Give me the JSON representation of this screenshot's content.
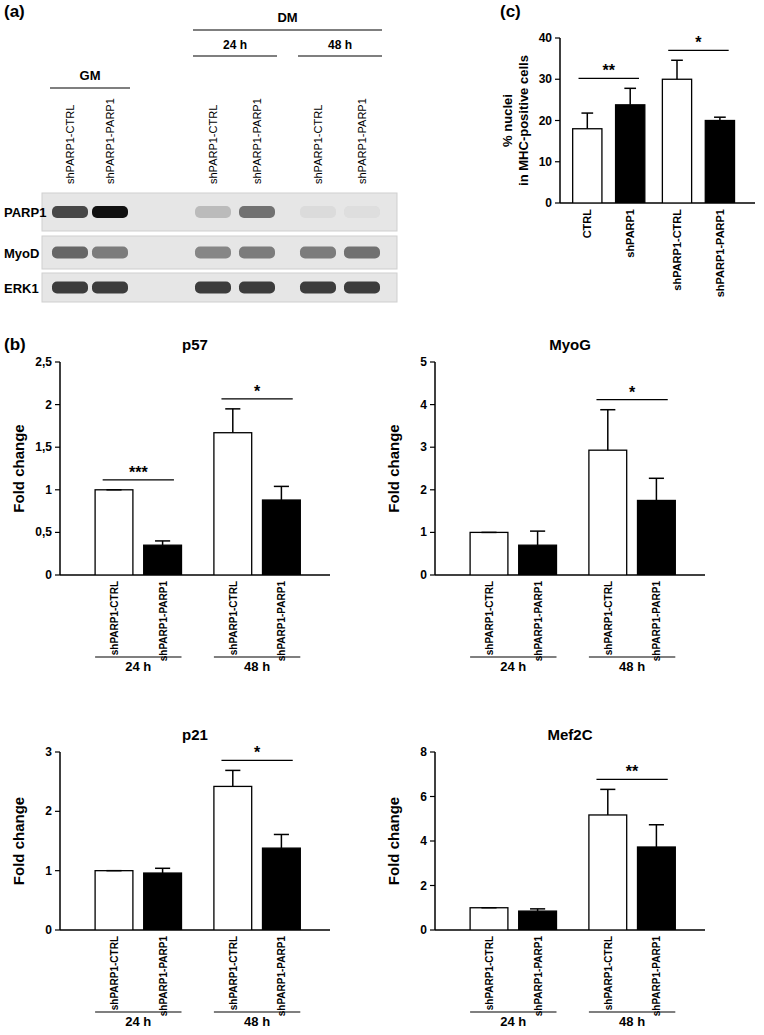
{
  "panel_labels": [
    "(a)",
    "(b)",
    "(c)"
  ],
  "blot": {
    "lanes": [
      "shPARP1-CTRL",
      "shPARP1-PARP1",
      "shPARP1-CTRL",
      "shPARP1-PARP1",
      "shPARP1-CTRL",
      "shPARP1-PARP1"
    ],
    "conditions": [
      {
        "label": "GM",
        "from": 0,
        "to": 1
      },
      {
        "label": "DM",
        "from": 2,
        "to": 5
      }
    ],
    "timepoints": [
      {
        "label": "24 h",
        "from": 2,
        "to": 3
      },
      {
        "label": "48 h",
        "from": 4,
        "to": 5
      }
    ],
    "rows": [
      {
        "label": "PARP1",
        "bands": [
          0.75,
          1,
          0.2,
          0.55,
          0.05,
          0.04
        ]
      },
      {
        "label": "MyoD",
        "bands": [
          0.6,
          0.5,
          0.45,
          0.5,
          0.5,
          0.55
        ]
      },
      {
        "label": "ERK1",
        "bands": [
          0.8,
          0.8,
          0.8,
          0.8,
          0.8,
          0.8
        ]
      }
    ]
  },
  "chart_data": [
    {
      "type": "bar",
      "title": "p57",
      "ylabel": "Fold change",
      "categories": [
        "shPARP1-CTRL",
        "shPARP1-PARP1",
        "shPARP1-CTRL",
        "shPARP1-PARP1"
      ],
      "values": [
        1,
        0.35,
        1.67,
        0.88
      ],
      "errors": [
        0,
        0.05,
        0.28,
        0.16
      ],
      "colors": [
        "#ffffff",
        "#000000",
        "#ffffff",
        "#000000"
      ],
      "groups": [
        {
          "label": "24 h",
          "from": 0,
          "to": 1
        },
        {
          "label": "48 h",
          "from": 2,
          "to": 3
        }
      ],
      "annotations": [
        {
          "text": "***",
          "from": 0,
          "to": 1
        },
        {
          "text": "*",
          "from": 2,
          "to": 3
        }
      ],
      "ylim": [
        0,
        2.5
      ],
      "yticks": [
        0,
        {
          "value": 0.5,
          "label": "0,5"
        },
        1,
        {
          "value": 1.5,
          "label": "1,5"
        },
        2,
        {
          "value": 2.5,
          "label": "2,5"
        }
      ]
    },
    {
      "type": "bar",
      "title": "MyoG",
      "ylabel": "Fold change",
      "categories": [
        "shPARP1-CTRL",
        "shPARP1-PARP1",
        "shPARP1-CTRL",
        "shPARP1-PARP1"
      ],
      "values": [
        1,
        0.7,
        2.93,
        1.75
      ],
      "errors": [
        0,
        0.33,
        0.95,
        0.52
      ],
      "colors": [
        "#ffffff",
        "#000000",
        "#ffffff",
        "#000000"
      ],
      "groups": [
        {
          "label": "24 h",
          "from": 0,
          "to": 1
        },
        {
          "label": "48 h",
          "from": 2,
          "to": 3
        }
      ],
      "annotations": [
        {
          "text": "*",
          "from": 2,
          "to": 3
        }
      ],
      "ylim": [
        0,
        5
      ],
      "yticks": [
        0,
        1,
        2,
        3,
        4,
        5
      ]
    },
    {
      "type": "bar",
      "title": "p21",
      "ylabel": "Fold change",
      "categories": [
        "shPARP1-CTRL",
        "shPARP1-PARP1",
        "shPARP1-CTRL",
        "shPARP1-PARP1"
      ],
      "values": [
        1,
        0.96,
        2.42,
        1.38
      ],
      "errors": [
        0,
        0.08,
        0.27,
        0.23
      ],
      "colors": [
        "#ffffff",
        "#000000",
        "#ffffff",
        "#000000"
      ],
      "groups": [
        {
          "label": "24 h",
          "from": 0,
          "to": 1
        },
        {
          "label": "48 h",
          "from": 2,
          "to": 3
        }
      ],
      "annotations": [
        {
          "text": "*",
          "from": 2,
          "to": 3
        }
      ],
      "ylim": [
        0,
        3
      ],
      "yticks": [
        0,
        1,
        2,
        3
      ]
    },
    {
      "type": "bar",
      "title": "Mef2C",
      "ylabel": "Fold change",
      "categories": [
        "shPARP1-CTRL",
        "shPARP1-PARP1",
        "shPARP1-CTRL",
        "shPARP1-PARP1"
      ],
      "values": [
        1,
        0.85,
        5.17,
        3.73
      ],
      "errors": [
        0,
        0.1,
        1.15,
        1.0
      ],
      "colors": [
        "#ffffff",
        "#000000",
        "#ffffff",
        "#000000"
      ],
      "groups": [
        {
          "label": "24 h",
          "from": 0,
          "to": 1
        },
        {
          "label": "48 h",
          "from": 2,
          "to": 3
        }
      ],
      "annotations": [
        {
          "text": "**",
          "from": 2,
          "to": 3
        }
      ],
      "ylim": [
        0,
        8
      ],
      "yticks": [
        0,
        2,
        4,
        6,
        8
      ]
    },
    {
      "type": "bar",
      "ylabel": [
        "% nuclei",
        "in MHC-positive cells"
      ],
      "categories": [
        "CTRL",
        "shPARP1",
        "shPARP1-CTRL",
        "shPARP1-PARP1"
      ],
      "values": [
        18,
        23.8,
        30,
        20
      ],
      "errors": [
        3.8,
        4,
        4.6,
        0.8
      ],
      "colors": [
        "#ffffff",
        "#000000",
        "#ffffff",
        "#000000"
      ],
      "annotations": [
        {
          "text": "**",
          "from": 0,
          "to": 1
        },
        {
          "text": "*",
          "from": 2,
          "to": 3
        }
      ],
      "ylim": [
        0,
        40
      ],
      "yticks": [
        0,
        10,
        20,
        30,
        40
      ]
    }
  ]
}
